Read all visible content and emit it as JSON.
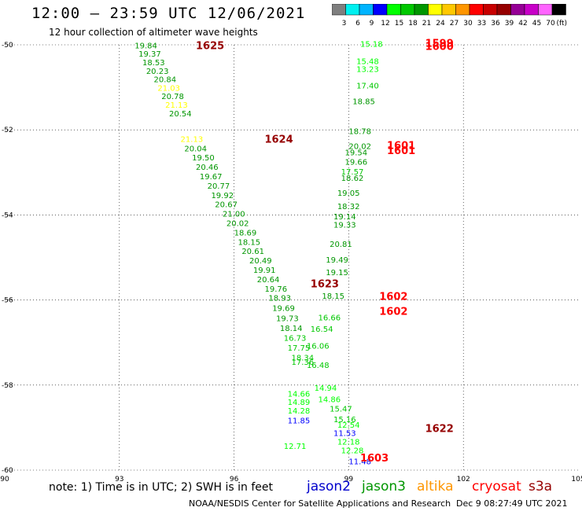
{
  "header": {
    "title": "12:00 — 23:59 UTC 12/06/2021",
    "subtitle": "12 hour collection of altimeter wave heights"
  },
  "colorbar": {
    "unit": "(ft)",
    "ticks": [
      "3",
      "6",
      "9",
      "12",
      "15",
      "18",
      "21",
      "24",
      "27",
      "30",
      "33",
      "36",
      "39",
      "42",
      "45",
      "70"
    ],
    "colors": [
      "#7f7f7f",
      "#00f0f0",
      "#00b4ff",
      "#0000ff",
      "#00ff00",
      "#00c800",
      "#009600",
      "#ffff00",
      "#ffc800",
      "#ff9600",
      "#ff0000",
      "#c80000",
      "#960000",
      "#960096",
      "#c800c8",
      "#ff64ff",
      "#000000"
    ]
  },
  "axes": {
    "x_ticks": [
      "90",
      "93",
      "96",
      "99",
      "102",
      "105"
    ],
    "y_ticks": [
      "-50",
      "-52",
      "-54",
      "-56",
      "-58",
      "-60"
    ]
  },
  "chart_data": {
    "type": "scatter",
    "x_range": [
      90,
      105
    ],
    "y_range": [
      -60,
      -50
    ],
    "tracks": [
      {
        "label": "1625",
        "lon": 95.0,
        "lat": -50.1,
        "color": "#960000"
      },
      {
        "label": "1624",
        "lon": 96.8,
        "lat": -52.3,
        "color": "#960000"
      },
      {
        "label": "1623",
        "lon": 98.0,
        "lat": -55.7,
        "color": "#960000"
      },
      {
        "label": "1599",
        "lon": 101.0,
        "lat": -50.05,
        "color": "#ff0000"
      },
      {
        "label": "1600",
        "lon": 101.0,
        "lat": -50.12,
        "color": "#ff0000"
      },
      {
        "label": "1601",
        "lon": 100.0,
        "lat": -52.45,
        "color": "#ff0000"
      },
      {
        "label": "1601",
        "lon": 100.0,
        "lat": -52.57,
        "color": "#ff0000"
      },
      {
        "label": "1602",
        "lon": 99.8,
        "lat": -56.0,
        "color": "#ff0000"
      },
      {
        "label": "1602",
        "lon": 99.8,
        "lat": -56.35,
        "color": "#ff0000"
      },
      {
        "label": "1622",
        "lon": 101.0,
        "lat": -59.1,
        "color": "#960000"
      },
      {
        "label": "1603",
        "lon": 99.3,
        "lat": -59.8,
        "color": "#ff0000"
      }
    ],
    "points": [
      {
        "v": "19.84",
        "lon": 93.4,
        "lat": -50.08,
        "color": "#009600"
      },
      {
        "v": "19.37",
        "lon": 93.5,
        "lat": -50.28,
        "color": "#009600"
      },
      {
        "v": "18.53",
        "lon": 93.6,
        "lat": -50.48,
        "color": "#009600"
      },
      {
        "v": "20.23",
        "lon": 93.7,
        "lat": -50.68,
        "color": "#009600"
      },
      {
        "v": "20.84",
        "lon": 93.9,
        "lat": -50.88,
        "color": "#009600"
      },
      {
        "v": "21.03",
        "lon": 94.0,
        "lat": -51.08,
        "color": "#ffff00"
      },
      {
        "v": "20.78",
        "lon": 94.1,
        "lat": -51.28,
        "color": "#009600"
      },
      {
        "v": "21.13",
        "lon": 94.2,
        "lat": -51.48,
        "color": "#ffff00"
      },
      {
        "v": "20.54",
        "lon": 94.3,
        "lat": -51.68,
        "color": "#009600"
      },
      {
        "v": "21.13",
        "lon": 94.6,
        "lat": -52.28,
        "color": "#ffff00"
      },
      {
        "v": "20.04",
        "lon": 94.7,
        "lat": -52.5,
        "color": "#009600"
      },
      {
        "v": "19.50",
        "lon": 94.9,
        "lat": -52.72,
        "color": "#009600"
      },
      {
        "v": "20.46",
        "lon": 95.0,
        "lat": -52.94,
        "color": "#009600"
      },
      {
        "v": "19.67",
        "lon": 95.1,
        "lat": -53.16,
        "color": "#009600"
      },
      {
        "v": "20.77",
        "lon": 95.3,
        "lat": -53.38,
        "color": "#009600"
      },
      {
        "v": "19.92",
        "lon": 95.4,
        "lat": -53.6,
        "color": "#009600"
      },
      {
        "v": "20.67",
        "lon": 95.5,
        "lat": -53.82,
        "color": "#009600"
      },
      {
        "v": "21.00",
        "lon": 95.7,
        "lat": -54.04,
        "color": "#009600"
      },
      {
        "v": "20.02",
        "lon": 95.8,
        "lat": -54.26,
        "color": "#009600"
      },
      {
        "v": "18.69",
        "lon": 96.0,
        "lat": -54.48,
        "color": "#009600"
      },
      {
        "v": "18.15",
        "lon": 96.1,
        "lat": -54.7,
        "color": "#009600"
      },
      {
        "v": "20.61",
        "lon": 96.2,
        "lat": -54.92,
        "color": "#009600"
      },
      {
        "v": "20.49",
        "lon": 96.4,
        "lat": -55.14,
        "color": "#009600"
      },
      {
        "v": "19.91",
        "lon": 96.5,
        "lat": -55.36,
        "color": "#009600"
      },
      {
        "v": "20.64",
        "lon": 96.6,
        "lat": -55.58,
        "color": "#009600"
      },
      {
        "v": "19.76",
        "lon": 96.8,
        "lat": -55.8,
        "color": "#009600"
      },
      {
        "v": "18.93",
        "lon": 96.9,
        "lat": -56.02,
        "color": "#009600"
      },
      {
        "v": "19.69",
        "lon": 97.0,
        "lat": -56.26,
        "color": "#009600"
      },
      {
        "v": "19.73",
        "lon": 97.1,
        "lat": -56.5,
        "color": "#009600"
      },
      {
        "v": "18.14",
        "lon": 97.2,
        "lat": -56.73,
        "color": "#009600"
      },
      {
        "v": "16.73",
        "lon": 97.3,
        "lat": -56.96,
        "color": "#00c800"
      },
      {
        "v": "17.75",
        "lon": 97.4,
        "lat": -57.19,
        "color": "#00c800"
      },
      {
        "v": "18.34",
        "lon": 97.5,
        "lat": -57.42,
        "color": "#00c800"
      },
      {
        "v": "17.36",
        "lon": 97.5,
        "lat": -57.52,
        "color": "#00c800"
      },
      {
        "v": "14.66",
        "lon": 97.4,
        "lat": -58.27,
        "color": "#00ff00"
      },
      {
        "v": "14.89",
        "lon": 97.4,
        "lat": -58.47,
        "color": "#00ff00"
      },
      {
        "v": "14.28",
        "lon": 97.4,
        "lat": -58.67,
        "color": "#00ff00"
      },
      {
        "v": "11.85",
        "lon": 97.4,
        "lat": -58.9,
        "color": "#0000ff"
      },
      {
        "v": "12.71",
        "lon": 97.3,
        "lat": -59.5,
        "color": "#00ff00"
      },
      {
        "v": "15.18",
        "lon": 99.3,
        "lat": -50.05,
        "color": "#00ff00"
      },
      {
        "v": "15.48",
        "lon": 99.2,
        "lat": -50.45,
        "color": "#00ff00"
      },
      {
        "v": "13.23",
        "lon": 99.2,
        "lat": -50.64,
        "color": "#00ff00"
      },
      {
        "v": "17.40",
        "lon": 99.2,
        "lat": -51.03,
        "color": "#00c800"
      },
      {
        "v": "18.85",
        "lon": 99.1,
        "lat": -51.4,
        "color": "#009600"
      },
      {
        "v": "18.78",
        "lon": 99.0,
        "lat": -52.1,
        "color": "#009600"
      },
      {
        "v": "20.02",
        "lon": 99.0,
        "lat": -52.45,
        "color": "#009600"
      },
      {
        "v": "19.54",
        "lon": 98.9,
        "lat": -52.6,
        "color": "#009600"
      },
      {
        "v": "19.66",
        "lon": 98.9,
        "lat": -52.82,
        "color": "#009600"
      },
      {
        "v": "17.57",
        "lon": 98.8,
        "lat": -53.05,
        "color": "#00c800"
      },
      {
        "v": "18.62",
        "lon": 98.8,
        "lat": -53.2,
        "color": "#009600"
      },
      {
        "v": "19.05",
        "lon": 98.7,
        "lat": -53.55,
        "color": "#009600"
      },
      {
        "v": "18.32",
        "lon": 98.7,
        "lat": -53.86,
        "color": "#009600"
      },
      {
        "v": "19.14",
        "lon": 98.6,
        "lat": -54.1,
        "color": "#009600"
      },
      {
        "v": "19.33",
        "lon": 98.6,
        "lat": -54.3,
        "color": "#009600"
      },
      {
        "v": "20.81",
        "lon": 98.5,
        "lat": -54.75,
        "color": "#009600"
      },
      {
        "v": "19.49",
        "lon": 98.4,
        "lat": -55.12,
        "color": "#009600"
      },
      {
        "v": "19.15",
        "lon": 98.4,
        "lat": -55.42,
        "color": "#009600"
      },
      {
        "v": "18.15",
        "lon": 98.3,
        "lat": -55.97,
        "color": "#009600"
      },
      {
        "v": "16.66",
        "lon": 98.2,
        "lat": -56.48,
        "color": "#00c800"
      },
      {
        "v": "16.54",
        "lon": 98.0,
        "lat": -56.75,
        "color": "#00c800"
      },
      {
        "v": "16.06",
        "lon": 97.9,
        "lat": -57.14,
        "color": "#00c800"
      },
      {
        "v": "16.48",
        "lon": 97.9,
        "lat": -57.6,
        "color": "#00c800"
      },
      {
        "v": "14.94",
        "lon": 98.1,
        "lat": -58.13,
        "color": "#00ff00"
      },
      {
        "v": "14.86",
        "lon": 98.2,
        "lat": -58.4,
        "color": "#00ff00"
      },
      {
        "v": "15.47",
        "lon": 98.5,
        "lat": -58.62,
        "color": "#00c800"
      },
      {
        "v": "15.16",
        "lon": 98.6,
        "lat": -58.87,
        "color": "#00c800"
      },
      {
        "v": "12.54",
        "lon": 98.7,
        "lat": -59.0,
        "color": "#00ff00"
      },
      {
        "v": "11.53",
        "lon": 98.6,
        "lat": -59.2,
        "color": "#0000ff"
      },
      {
        "v": "12.18",
        "lon": 98.7,
        "lat": -59.4,
        "color": "#00ff00"
      },
      {
        "v": "12.28",
        "lon": 98.8,
        "lat": -59.6,
        "color": "#00ff00"
      },
      {
        "v": "11.48",
        "lon": 99.0,
        "lat": -59.86,
        "color": "#0000ff"
      }
    ]
  },
  "footer": {
    "notes": "note:  1) Time is in UTC;  2) SWH is in feet",
    "credit": "NOAA/NESDIS Center for Satellite Applications and Research",
    "timestamp": "Dec  9 08:27:49 UTC 2021",
    "satellites": [
      {
        "name": "jason2",
        "color": "#0000cc"
      },
      {
        "name": "jason3",
        "color": "#009600"
      },
      {
        "name": "altika",
        "color": "#ff9600"
      },
      {
        "name": "cryosat",
        "color": "#ff0000"
      },
      {
        "name": "s3a",
        "color": "#960000"
      }
    ]
  }
}
